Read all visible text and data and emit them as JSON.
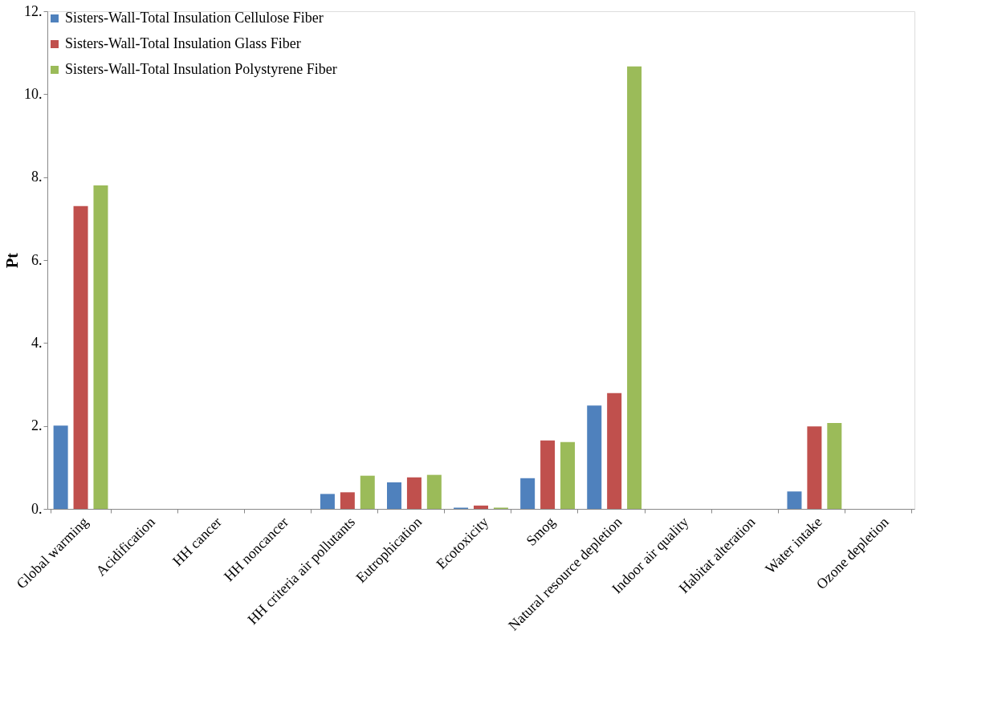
{
  "chart_data": {
    "type": "bar",
    "ylabel": "Pt",
    "categories": [
      "Global warming",
      "Acidification",
      "HH cancer",
      "HH noncancer",
      "HH criteria air pollutants",
      "Eutrophication",
      "Ecotoxicity",
      "Smog",
      "Natural resource depletion",
      "Indoor air quality",
      "Habitat alteration",
      "Water intake",
      "Ozone depletion"
    ],
    "series": [
      {
        "name": "Sisters-Wall-Total Insulation Cellulose Fiber",
        "color": "#4f81bd",
        "values": [
          2.01,
          0,
          0,
          0,
          0.36,
          0.64,
          0.03,
          0.74,
          2.49,
          0,
          0,
          0.42,
          0
        ]
      },
      {
        "name": "Sisters-Wall-Total Insulation Glass Fiber",
        "color": "#c0504d",
        "values": [
          7.3,
          0,
          0,
          0,
          0.4,
          0.76,
          0.08,
          1.65,
          2.79,
          0,
          0,
          1.99,
          0
        ]
      },
      {
        "name": "Sisters-Wall-Total Insulation Polystyrene Fiber",
        "color": "#9bbb59",
        "values": [
          7.8,
          0,
          0,
          0,
          0.8,
          0.82,
          0.03,
          1.61,
          10.67,
          0,
          0,
          2.07,
          0
        ]
      }
    ],
    "ylim": [
      0,
      12
    ],
    "yticks": [
      {
        "value": 0,
        "label": "0."
      },
      {
        "value": 2,
        "label": "2."
      },
      {
        "value": 4,
        "label": "4."
      },
      {
        "value": 6,
        "label": "6."
      },
      {
        "value": 8,
        "label": "8."
      },
      {
        "value": 10,
        "label": "10."
      },
      {
        "value": 12,
        "label": "12."
      }
    ],
    "grid": false,
    "legend": "top left"
  }
}
